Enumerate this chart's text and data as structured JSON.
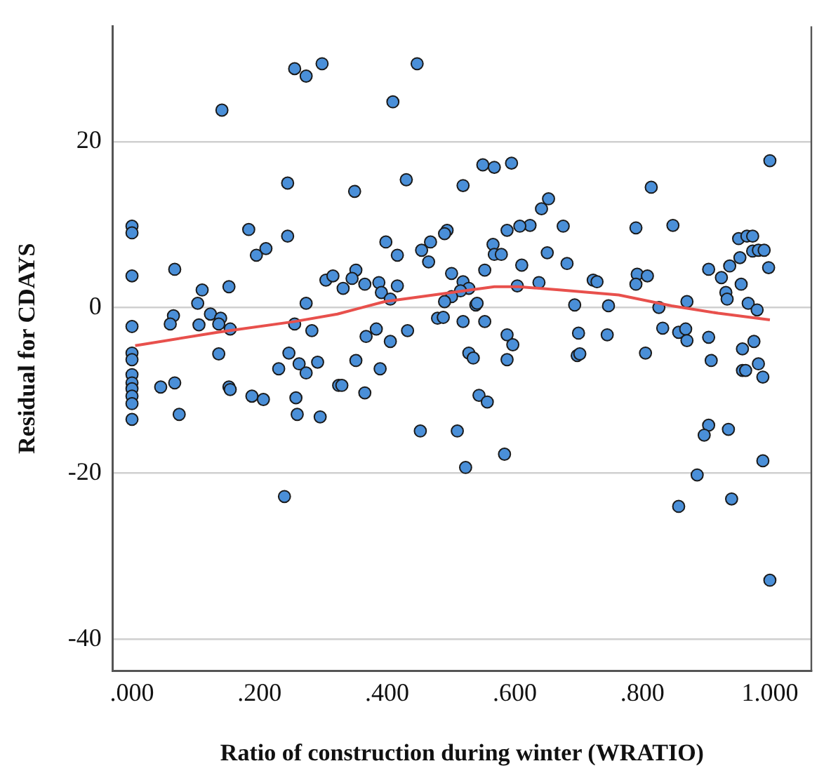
{
  "chart_data": {
    "type": "scatter",
    "xlabel": "Ratio of construction during winter (WRATIO)",
    "ylabel": "Residual for CDAYS",
    "xlim": [
      -0.03,
      1.065
    ],
    "ylim": [
      -43.8,
      33.9
    ],
    "xticks": [
      {
        "value": 0,
        "label": ".000"
      },
      {
        "value": 0.2,
        "label": ".200"
      },
      {
        "value": 0.4,
        "label": ".400"
      },
      {
        "value": 0.6,
        "label": ".600"
      },
      {
        "value": 0.8,
        "label": ".800"
      },
      {
        "value": 1,
        "label": "1.000"
      }
    ],
    "yticks": [
      -40,
      -20,
      0,
      20
    ],
    "grid": "y",
    "legend": false,
    "marker": "circle",
    "series": [
      {
        "color": "#4a8fd8",
        "x": [
          0,
          0,
          0,
          0,
          0,
          0,
          0,
          0,
          0,
          0,
          0,
          0,
          0.141,
          0.255,
          0.273,
          0.298,
          0.244,
          0.183,
          0.244,
          0.195,
          0.21,
          0.067,
          0.11,
          0.152,
          0.304,
          0.315,
          0.103,
          0.273,
          0.065,
          0.06,
          0.105,
          0.123,
          0.139,
          0.136,
          0.154,
          0.255,
          0.282,
          0.136,
          0.246,
          0.045,
          0.067,
          0.074,
          0.152,
          0.154,
          0.188,
          0.206,
          0.23,
          0.262,
          0.273,
          0.291,
          0.257,
          0.259,
          0.295,
          0.239,
          0.324,
          0.447,
          0.409,
          0.55,
          0.568,
          0.595,
          0.43,
          0.349,
          0.519,
          0.653,
          0.642,
          0.676,
          0.624,
          0.608,
          0.588,
          0.494,
          0.49,
          0.398,
          0.468,
          0.454,
          0.465,
          0.416,
          0.566,
          0.568,
          0.579,
          0.651,
          0.611,
          0.682,
          0.351,
          0.345,
          0.331,
          0.365,
          0.387,
          0.391,
          0.405,
          0.416,
          0.501,
          0.519,
          0.528,
          0.515,
          0.501,
          0.49,
          0.553,
          0.604,
          0.638,
          0.539,
          0.541,
          0.694,
          0.479,
          0.488,
          0.519,
          0.553,
          0.367,
          0.383,
          0.405,
          0.432,
          0.588,
          0.597,
          0.7,
          0.528,
          0.535,
          0.588,
          0.698,
          0.351,
          0.389,
          0.329,
          0.365,
          0.544,
          0.557,
          0.452,
          0.51,
          0.584,
          0.523,
          1.0,
          0.814,
          0.79,
          0.848,
          0.951,
          0.964,
          0.973,
          0.973,
          0.982,
          0.991,
          0.953,
          0.937,
          0.904,
          0.998,
          0.924,
          0.955,
          0.723,
          0.729,
          0.792,
          0.808,
          0.79,
          0.931,
          0.933,
          0.747,
          0.826,
          0.87,
          0.966,
          0.98,
          0.745,
          0.832,
          0.857,
          0.868,
          0.87,
          0.904,
          0.975,
          0.957,
          0.805,
          0.702,
          0.908,
          0.957,
          0.962,
          0.982,
          0.989,
          0.904,
          0.897,
          0.935,
          0.989,
          0.886,
          0.857,
          0.94,
          1.0
        ],
        "values": [
          9.8,
          9.0,
          3.8,
          -2.3,
          -5.5,
          -6.3,
          -8.1,
          -9.1,
          -9.8,
          -10.7,
          -11.6,
          -13.5,
          23.8,
          28.8,
          27.9,
          29.4,
          15.0,
          9.4,
          8.6,
          6.3,
          7.1,
          4.6,
          2.1,
          2.5,
          3.3,
          3.8,
          0.5,
          0.5,
          -1.0,
          -2.0,
          -2.1,
          -0.8,
          -1.3,
          -2.0,
          -2.6,
          -2.0,
          -2.8,
          -5.6,
          -5.5,
          -9.6,
          -9.1,
          -12.9,
          -9.6,
          -9.9,
          -10.7,
          -11.1,
          -7.4,
          -6.8,
          -7.9,
          -6.6,
          -10.9,
          -12.9,
          -13.2,
          -22.8,
          -9.4,
          29.4,
          24.8,
          17.2,
          16.9,
          17.4,
          15.4,
          14.0,
          14.7,
          13.1,
          11.9,
          9.8,
          9.9,
          9.8,
          9.3,
          9.3,
          8.9,
          7.9,
          7.9,
          6.9,
          5.5,
          6.3,
          7.6,
          6.4,
          6.4,
          6.6,
          5.1,
          5.3,
          4.5,
          3.5,
          2.3,
          2.8,
          3.0,
          1.8,
          1.0,
          2.6,
          4.1,
          3.1,
          2.3,
          2.0,
          1.3,
          0.7,
          4.5,
          2.6,
          3.0,
          0.3,
          0.5,
          0.3,
          -1.3,
          -1.2,
          -1.7,
          -1.7,
          -3.5,
          -2.6,
          -4.1,
          -2.8,
          -3.3,
          -4.5,
          -3.1,
          -5.5,
          -6.1,
          -6.3,
          -5.8,
          -6.4,
          -7.4,
          -9.4,
          -10.3,
          -10.6,
          -11.4,
          -14.9,
          -14.9,
          -17.7,
          -19.3,
          17.7,
          14.5,
          9.6,
          9.9,
          8.3,
          8.6,
          8.6,
          6.8,
          6.9,
          6.9,
          6.0,
          5.0,
          4.6,
          4.8,
          3.6,
          2.8,
          3.3,
          3.1,
          4.0,
          3.8,
          2.8,
          1.8,
          1.0,
          0.2,
          0.0,
          0.7,
          0.5,
          -0.3,
          -3.3,
          -2.5,
          -3.0,
          -2.6,
          -4.0,
          -3.6,
          -4.1,
          -5.0,
          -5.5,
          -5.6,
          -6.4,
          -7.6,
          -7.6,
          -6.8,
          -8.4,
          -14.2,
          -15.4,
          -14.7,
          -18.5,
          -20.2,
          -24.0,
          -23.1,
          -32.9
        ]
      },
      {
        "type": "line",
        "color": "#e8504c",
        "marker": "none",
        "line_style": "solid",
        "x": [
          0.005,
          0.134,
          0.255,
          0.322,
          0.396,
          0.501,
          0.568,
          0.606,
          0.673,
          0.763,
          0.846,
          0.919,
          1.0
        ],
        "values": [
          -4.6,
          -3.0,
          -1.7,
          -0.8,
          0.7,
          1.8,
          2.5,
          2.5,
          2.1,
          1.5,
          0.2,
          -0.7,
          -1.5
        ]
      }
    ]
  }
}
